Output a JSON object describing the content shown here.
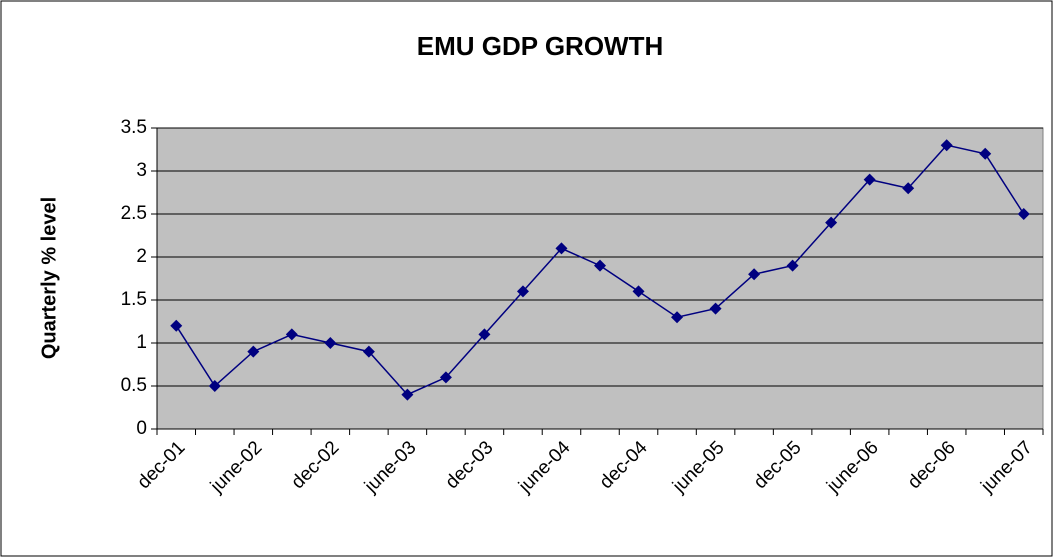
{
  "chart_data": {
    "type": "line",
    "title": "EMU GDP GROWTH",
    "y_label": "Quarterly %  level",
    "categories": [
      "dec-01",
      null,
      "june-02",
      null,
      "dec-02",
      null,
      "june-03",
      null,
      "dec-03",
      null,
      "june-04",
      null,
      "dec-04",
      null,
      "june-05",
      null,
      "dec-05",
      null,
      "june-06",
      null,
      "dec-06",
      null,
      "june-07"
    ],
    "series": [
      {
        "color": "#000080",
        "values": [
          1.2,
          0.5,
          0.9,
          1.1,
          1.0,
          0.9,
          0.4,
          0.6,
          1.1,
          1.6,
          2.1,
          1.9,
          1.6,
          1.3,
          1.4,
          1.8,
          1.9,
          2.4,
          2.9,
          2.8,
          3.3,
          3.2,
          2.5
        ]
      }
    ],
    "ylim": [
      0,
      3.5
    ],
    "yticks": [
      0,
      0.5,
      1,
      1.5,
      2,
      2.5,
      3,
      3.5
    ],
    "grid": true,
    "plot_background": "#c0c0c0"
  }
}
